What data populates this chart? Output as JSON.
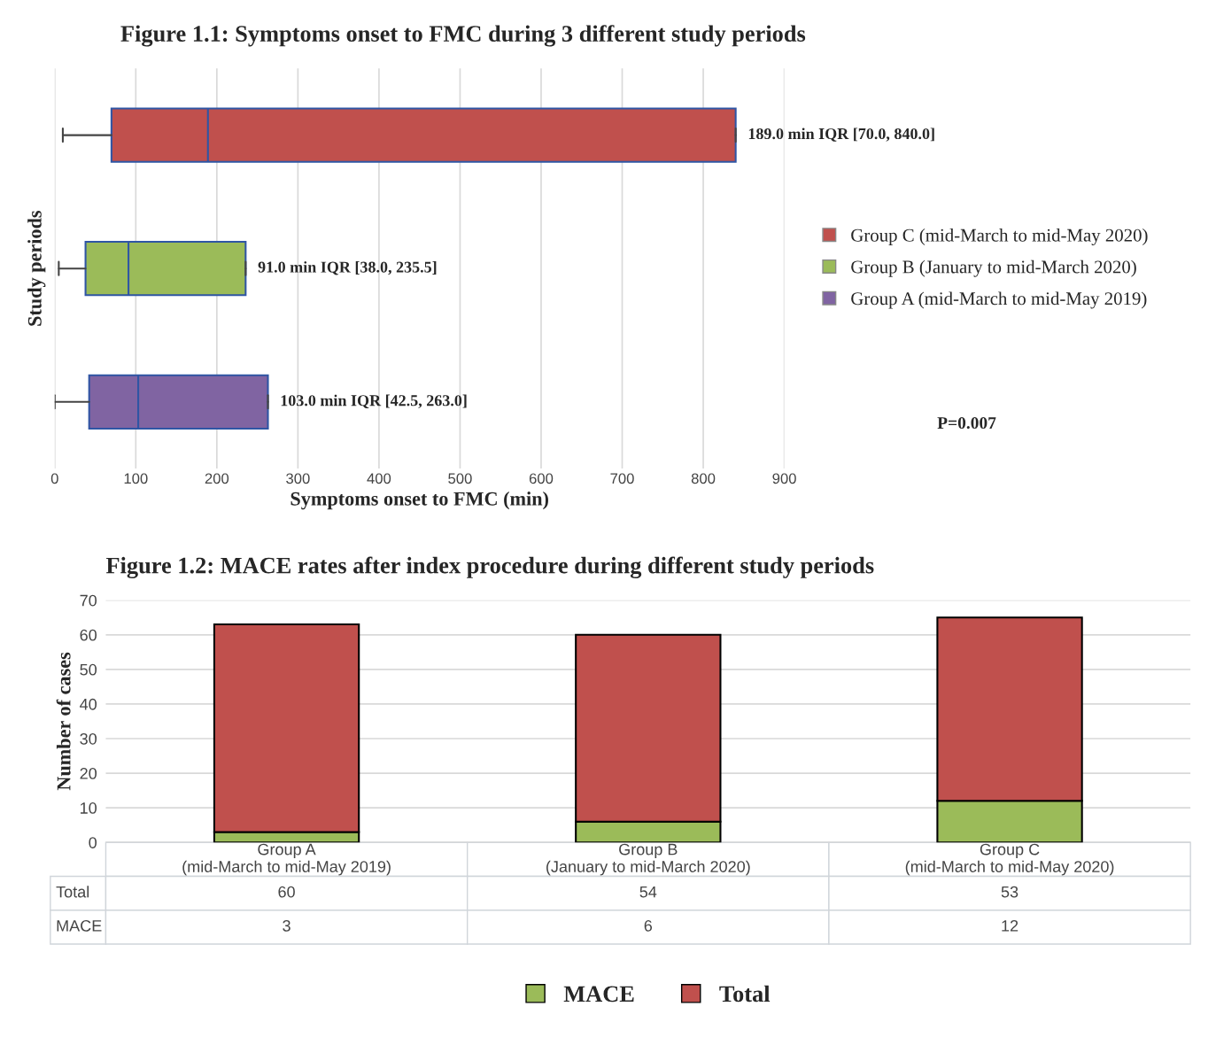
{
  "chart_data": [
    {
      "type": "box",
      "orientation": "horizontal",
      "title": "Figure 1.1: Symptoms onset to FMC during 3 different study periods",
      "xlabel": "Symptoms onset to FMC (min)",
      "ylabel": "Study periods",
      "categories": [
        null,
        null,
        null
      ],
      "series": [
        {
          "name": "Group C (mid-March to mid-May 2020)",
          "color": "#c0504d",
          "boxes": [
            {
              "low": 10,
              "q1": 70.0,
              "median": 189.0,
              "q3": 840.0,
              "high": 840.0
            },
            null,
            null
          ]
        },
        {
          "name": "Group B (January to mid-March 2020)",
          "color": "#9bbb59",
          "boxes": [
            null,
            {
              "low": 5,
              "q1": 38.0,
              "median": 91.0,
              "q3": 235.5,
              "high": 235.5
            },
            null
          ]
        },
        {
          "name": "Group A (mid-March to mid-May 2019)",
          "color": "#8064a2",
          "boxes": [
            null,
            null,
            {
              "low": 0,
              "q1": 42.5,
              "median": 103.0,
              "q3": 263.0,
              "high": 263.0
            }
          ]
        }
      ],
      "value_labels": [
        "189.0 min IQR [70.0, 840.0]",
        "91.0 min IQR [38.0, 235.5]",
        "103.0 min IQR [42.5, 263.0]"
      ],
      "annotations": [
        "P=0.007"
      ],
      "xlim": [
        0,
        900
      ],
      "xticks": [
        0,
        100,
        200,
        300,
        400,
        500,
        600,
        700,
        800,
        900
      ],
      "grid": "x",
      "legend": "right"
    },
    {
      "type": "bar",
      "stacked": true,
      "title": "Figure 1.2: MACE rates after index procedure during different study periods",
      "ylabel": "Number of cases",
      "categories": [
        "Group A\n(mid-March to mid-May 2019)",
        "Group B\n(January to mid-March 2020)",
        "Group C\n(mid-March to mid-May 2020)"
      ],
      "series": [
        {
          "name": "MACE",
          "color": "#9bbb59",
          "values": [
            3,
            6,
            12
          ]
        },
        {
          "name": "Total",
          "color": "#c0504d",
          "values": [
            60,
            54,
            53
          ]
        }
      ],
      "data_labels": true,
      "ylim": [
        0,
        70
      ],
      "yticks": [
        0,
        10,
        20,
        30,
        40,
        50,
        60,
        70
      ],
      "grid": "y",
      "legend": "bottom"
    }
  ]
}
